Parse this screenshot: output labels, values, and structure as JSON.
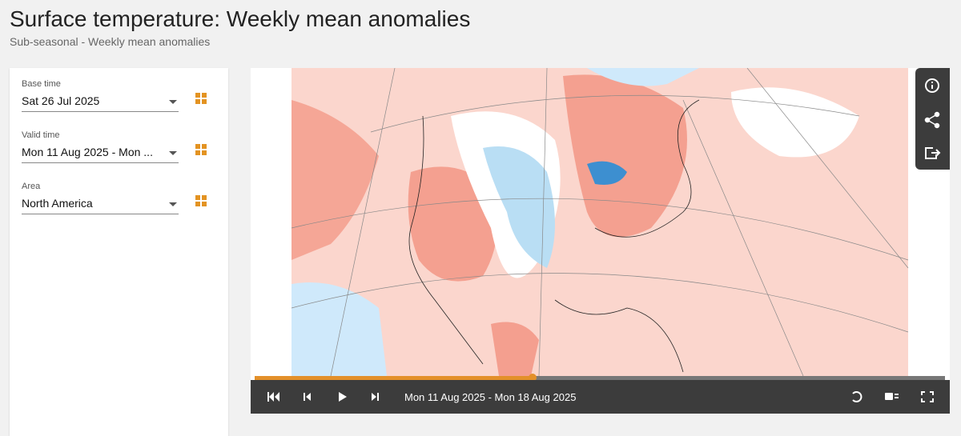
{
  "header": {
    "title": "Surface temperature: Weekly mean anomalies",
    "subtitle": "Sub-seasonal - Weekly mean anomalies"
  },
  "controls": [
    {
      "label": "Base time",
      "value": "Sat 26 Jul 2025"
    },
    {
      "label": "Valid time",
      "value": "Mon 11 Aug 2025 - Mon ..."
    },
    {
      "label": "Area",
      "value": "North America"
    }
  ],
  "player": {
    "period": "Mon 11 Aug 2025 - Mon 18 Aug 2025"
  }
}
